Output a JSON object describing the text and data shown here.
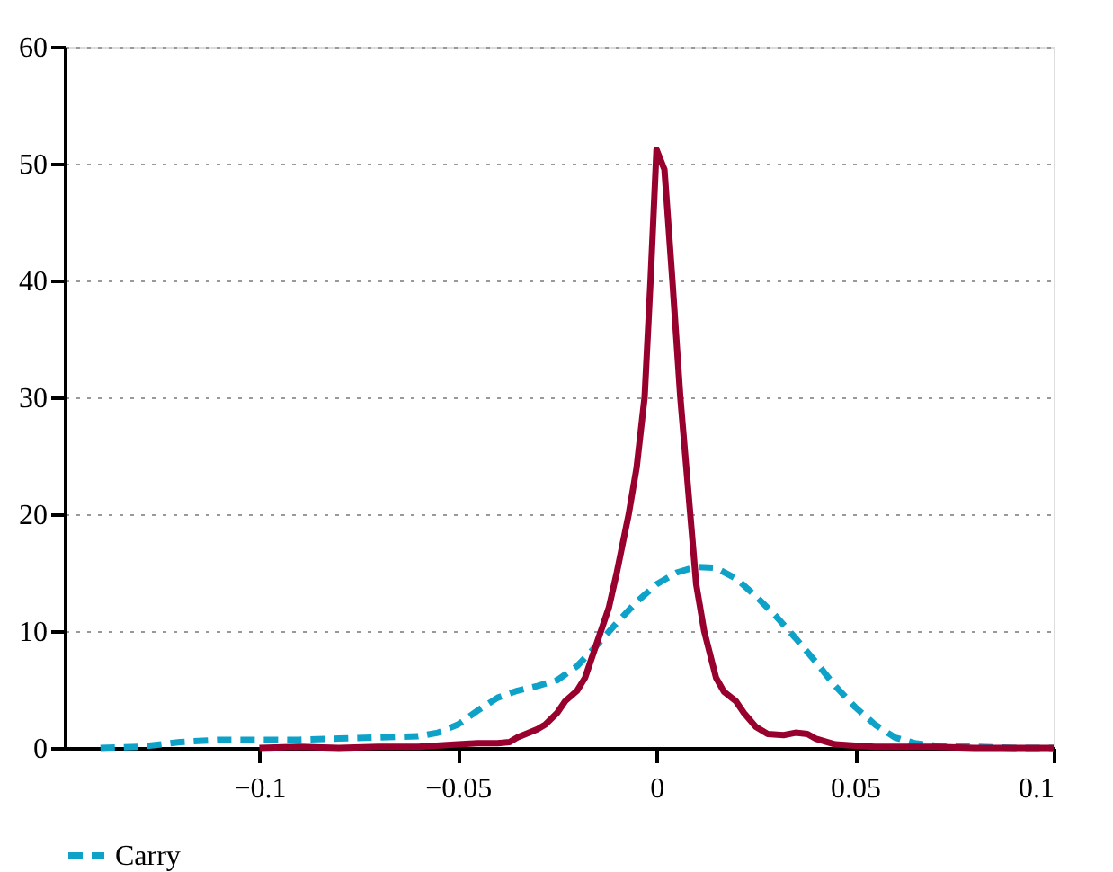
{
  "chart_data": {
    "type": "line",
    "xlim": [
      -0.149,
      0.1
    ],
    "xticks": [
      -0.1,
      -0.05,
      0,
      0.05,
      0.1
    ],
    "ylim": [
      0,
      60
    ],
    "yticks": [
      0,
      10,
      20,
      30,
      40,
      50,
      60
    ],
    "grid": "y",
    "legend": "bottom",
    "marker": "none",
    "series": [
      {
        "name": "Carry",
        "color": "#0ea2c8",
        "line_style": "dashed",
        "x": [
          -0.14,
          -0.13,
          -0.12,
          -0.11,
          -0.1,
          -0.09,
          -0.08,
          -0.07,
          -0.06,
          -0.055,
          -0.05,
          -0.045,
          -0.04,
          -0.035,
          -0.03,
          -0.025,
          -0.02,
          -0.015,
          -0.01,
          -0.005,
          0,
          0.005,
          0.01,
          0.015,
          0.02,
          0.025,
          0.03,
          0.035,
          0.04,
          0.045,
          0.05,
          0.055,
          0.06,
          0.065,
          0.07,
          0.08,
          0.09,
          0.1
        ],
        "values": [
          0,
          0.1,
          0.5,
          0.7,
          0.7,
          0.7,
          0.8,
          0.9,
          1.0,
          1.3,
          2,
          3.2,
          4.3,
          4.9,
          5.3,
          5.8,
          7,
          8.8,
          10.7,
          12.5,
          14,
          15,
          15.5,
          15.4,
          14.5,
          13,
          11.3,
          9.4,
          7.4,
          5.3,
          3.5,
          2,
          0.9,
          0.4,
          0.2,
          0.1,
          0,
          0
        ]
      },
      {
        "color": "#98002e",
        "line_style": "solid",
        "x": [
          -0.1,
          -0.09,
          -0.08,
          -0.07,
          -0.06,
          -0.05,
          -0.045,
          -0.04,
          -0.037,
          -0.035,
          -0.03,
          -0.028,
          -0.025,
          -0.023,
          -0.02,
          -0.018,
          -0.015,
          -0.012,
          -0.01,
          -0.007,
          -0.005,
          -0.003,
          -0.0015,
          0,
          0.002,
          0.004,
          0.006,
          0.008,
          0.01,
          0.012,
          0.015,
          0.017,
          0.02,
          0.022,
          0.025,
          0.028,
          0.032,
          0.035,
          0.038,
          0.04,
          0.045,
          0.05,
          0.055,
          0.06,
          0.07,
          0.08,
          0.1
        ],
        "values": [
          0,
          0.1,
          0,
          0.1,
          0.1,
          0.3,
          0.4,
          0.4,
          0.5,
          0.9,
          1.6,
          2,
          3,
          4,
          4.9,
          6,
          9,
          12,
          15,
          20,
          24,
          30,
          40,
          51.2,
          49.5,
          40,
          30,
          22,
          14,
          10,
          6,
          4.8,
          4,
          3,
          1.8,
          1.2,
          1.1,
          1.3,
          1.2,
          0.8,
          0.3,
          0.2,
          0.1,
          0.1,
          0.1,
          0,
          0
        ]
      }
    ]
  }
}
